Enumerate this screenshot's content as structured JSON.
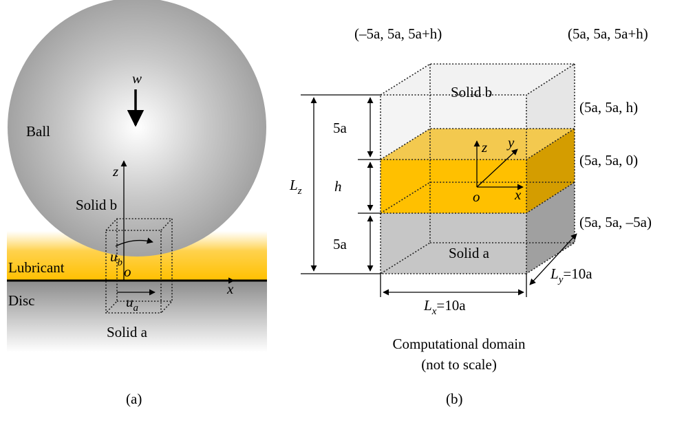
{
  "panel_a": {
    "ball": "Ball",
    "w": "w",
    "z": "z",
    "solid_b": "Solid b",
    "u_b": {
      "main": "u",
      "sub": "b"
    },
    "lubricant": "Lubricant",
    "o": "o",
    "x": "x",
    "disc": "Disc",
    "u_a": {
      "main": "u",
      "sub": "a"
    },
    "solid_a": "Solid a",
    "caption": "(a)"
  },
  "panel_b": {
    "corner_back_left": "(–5a, 5a, 5a+h)",
    "corner_back_right": "(5a, 5a, 5a+h)",
    "corner_h": "(5a, 5a, h)",
    "corner_0": "(5a, 5a, 0)",
    "corner_minus": "(5a, 5a, –5a)",
    "solid_b": "Solid b",
    "solid_a": "Solid a",
    "dim_top": "5a",
    "dim_h": "h",
    "dim_bottom": "5a",
    "l_z": {
      "main": "L",
      "sub": "z"
    },
    "l_x": {
      "main": "L",
      "sub": "x",
      "rest": "=10a"
    },
    "l_y": {
      "main": "L",
      "sub": "y",
      "rest": "=10a"
    },
    "axis_z": "z",
    "axis_y": "y",
    "axis_x": "x",
    "origin": "o",
    "domain_line1": "Computational domain",
    "domain_line2": "(not to scale)",
    "caption": "(b)"
  }
}
